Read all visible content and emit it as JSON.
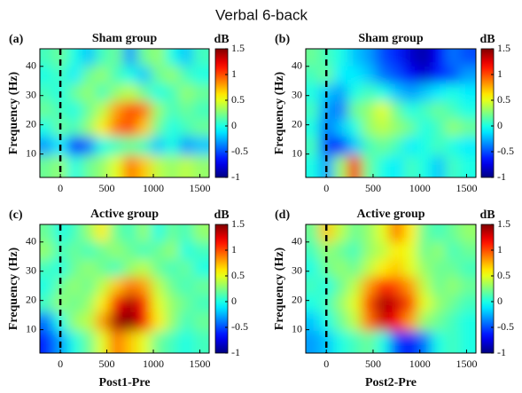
{
  "title": "Verbal 6-back",
  "chart_data": [
    {
      "type": "heatmap",
      "panel_label": "(a)",
      "title": "Sham group",
      "ylabel": "Frequency (Hz)",
      "x": [
        -150,
        0,
        150,
        300,
        450,
        600,
        750,
        900,
        1050,
        1200,
        1350,
        1500
      ],
      "y": [
        43,
        37,
        31,
        25,
        19,
        13,
        6
      ],
      "z": [
        [
          0.1,
          0.2,
          0.0,
          -0.2,
          0.1,
          0.2,
          -0.3,
          0.2,
          0.3,
          0.0,
          -0.2,
          0.1
        ],
        [
          0.0,
          0.1,
          -0.1,
          0.2,
          0.3,
          0.1,
          0.0,
          -0.2,
          0.2,
          0.3,
          0.1,
          0.0
        ],
        [
          0.1,
          0.0,
          0.2,
          0.3,
          0.1,
          0.3,
          0.4,
          0.2,
          0.0,
          0.1,
          0.3,
          0.2
        ],
        [
          0.2,
          0.1,
          0.0,
          0.2,
          0.4,
          0.8,
          1.0,
          0.9,
          0.3,
          0.1,
          0.2,
          0.1
        ],
        [
          0.0,
          0.2,
          0.1,
          0.3,
          0.6,
          0.9,
          1.0,
          0.7,
          0.2,
          0.0,
          0.1,
          0.2
        ],
        [
          -0.3,
          -0.1,
          -0.6,
          -0.4,
          0.0,
          0.1,
          0.2,
          0.1,
          -0.2,
          0.0,
          -0.3,
          -0.2
        ],
        [
          0.2,
          0.3,
          0.0,
          0.2,
          0.3,
          0.5,
          0.9,
          0.7,
          0.4,
          0.3,
          0.4,
          0.3
        ]
      ],
      "xlim": [
        -220,
        1600
      ],
      "ylim": [
        2,
        46
      ],
      "xticks": [
        0,
        500,
        1000,
        1500
      ],
      "yticks": [
        10,
        20,
        30,
        40
      ],
      "vline": 0,
      "colormap": "jet",
      "clim": [
        -1,
        1.5
      ],
      "cticks": [
        -1,
        -0.5,
        0,
        0.5,
        1,
        1.5
      ],
      "colorbar_label": "dB"
    },
    {
      "type": "heatmap",
      "panel_label": "(b)",
      "title": "Sham group",
      "ylabel": "Frequency (Hz)",
      "x": [
        -150,
        0,
        150,
        300,
        450,
        600,
        750,
        900,
        1050,
        1200,
        1350,
        1500
      ],
      "y": [
        43,
        37,
        31,
        25,
        19,
        13,
        6
      ],
      "z": [
        [
          0.2,
          0.1,
          0.0,
          -0.2,
          -0.3,
          -0.5,
          -0.6,
          -0.8,
          -0.9,
          -0.7,
          -0.4,
          -0.5
        ],
        [
          0.1,
          0.2,
          -0.1,
          -0.1,
          -0.2,
          -0.4,
          -0.5,
          -0.7,
          -0.8,
          -0.6,
          -0.5,
          -0.3
        ],
        [
          0.0,
          -0.2,
          -0.3,
          0.0,
          0.1,
          0.0,
          -0.2,
          -0.3,
          -0.2,
          -0.1,
          0.0,
          -0.1
        ],
        [
          0.1,
          -0.3,
          -0.4,
          0.2,
          0.3,
          0.5,
          0.2,
          0.0,
          0.1,
          0.2,
          0.1,
          0.0
        ],
        [
          0.0,
          -0.4,
          -0.2,
          0.0,
          0.3,
          0.4,
          0.3,
          0.2,
          0.0,
          0.1,
          0.3,
          0.2
        ],
        [
          0.1,
          -0.5,
          -0.6,
          -0.2,
          0.1,
          0.2,
          0.1,
          -0.1,
          0.0,
          0.1,
          0.0,
          -0.1
        ],
        [
          0.0,
          -0.3,
          0.3,
          1.2,
          0.2,
          0.0,
          -0.1,
          0.1,
          0.0,
          -0.2,
          0.1,
          0.0
        ]
      ],
      "xlim": [
        -220,
        1600
      ],
      "ylim": [
        2,
        46
      ],
      "xticks": [
        0,
        500,
        1000,
        1500
      ],
      "yticks": [
        10,
        20,
        30,
        40
      ],
      "vline": 0,
      "colormap": "jet",
      "clim": [
        -1,
        1.5
      ],
      "cticks": [
        -1,
        -0.5,
        0,
        0.5,
        1,
        1.5
      ],
      "colorbar_label": "dB"
    },
    {
      "type": "heatmap",
      "panel_label": "(c)",
      "title": "Active group",
      "ylabel": "Frequency (Hz)",
      "xlabel": "Post1-Pre",
      "x": [
        -150,
        0,
        150,
        300,
        450,
        600,
        750,
        900,
        1050,
        1200,
        1350,
        1500
      ],
      "y": [
        43,
        37,
        31,
        25,
        19,
        13,
        6
      ],
      "z": [
        [
          0.2,
          0.0,
          0.1,
          0.3,
          0.6,
          0.2,
          0.1,
          0.3,
          0.0,
          0.2,
          0.1,
          0.3
        ],
        [
          0.3,
          0.1,
          0.2,
          0.1,
          0.2,
          0.3,
          0.2,
          0.1,
          0.2,
          0.3,
          0.0,
          0.1
        ],
        [
          0.1,
          0.0,
          0.2,
          0.3,
          0.2,
          0.1,
          0.3,
          0.4,
          0.2,
          0.1,
          0.2,
          0.0
        ],
        [
          0.0,
          0.2,
          0.3,
          0.2,
          0.4,
          0.7,
          0.9,
          0.8,
          0.4,
          0.2,
          0.1,
          0.2
        ],
        [
          0.1,
          0.3,
          0.2,
          0.3,
          0.6,
          1.2,
          1.4,
          1.1,
          0.5,
          0.3,
          0.2,
          0.1
        ],
        [
          -0.4,
          0.0,
          0.3,
          0.4,
          0.8,
          1.4,
          1.5,
          1.2,
          0.6,
          0.3,
          0.1,
          0.2
        ],
        [
          -0.6,
          -0.3,
          0.0,
          0.2,
          0.5,
          0.9,
          0.7,
          0.5,
          0.2,
          0.1,
          0.0,
          0.1
        ]
      ],
      "xlim": [
        -220,
        1600
      ],
      "ylim": [
        2,
        46
      ],
      "xticks": [
        0,
        500,
        1000,
        1500
      ],
      "yticks": [
        10,
        20,
        30,
        40
      ],
      "vline": 0,
      "colormap": "jet",
      "clim": [
        -1,
        1.5
      ],
      "cticks": [
        -1,
        -0.5,
        0,
        0.5,
        1,
        1.5
      ],
      "colorbar_label": "dB"
    },
    {
      "type": "heatmap",
      "panel_label": "(d)",
      "title": "Active group",
      "ylabel": "Frequency (Hz)",
      "xlabel": "Post2-Pre",
      "x": [
        -150,
        0,
        150,
        300,
        450,
        600,
        750,
        900,
        1050,
        1200,
        1350,
        1500
      ],
      "y": [
        43,
        37,
        31,
        25,
        19,
        13,
        6
      ],
      "z": [
        [
          0.2,
          0.7,
          0.4,
          0.2,
          0.3,
          0.5,
          0.9,
          0.6,
          0.2,
          0.1,
          0.2,
          0.3
        ],
        [
          0.1,
          0.3,
          0.2,
          0.1,
          0.3,
          0.4,
          0.6,
          0.5,
          0.2,
          0.3,
          0.1,
          0.2
        ],
        [
          0.0,
          0.2,
          0.3,
          0.2,
          0.4,
          0.6,
          0.7,
          0.5,
          0.3,
          0.2,
          0.2,
          0.1
        ],
        [
          0.1,
          0.0,
          0.2,
          0.4,
          0.8,
          1.1,
          1.0,
          0.8,
          0.4,
          0.2,
          0.3,
          0.2
        ],
        [
          0.0,
          0.1,
          0.3,
          0.5,
          1.0,
          1.4,
          1.3,
          1.0,
          0.5,
          0.3,
          0.2,
          0.1
        ],
        [
          -0.2,
          0.0,
          0.2,
          0.4,
          0.9,
          1.3,
          1.2,
          0.8,
          0.3,
          0.2,
          0.1,
          0.0
        ],
        [
          -0.3,
          -0.2,
          0.0,
          0.1,
          0.2,
          0.0,
          -0.5,
          -0.7,
          -0.4,
          0.0,
          0.1,
          0.0
        ]
      ],
      "xlim": [
        -220,
        1600
      ],
      "ylim": [
        2,
        46
      ],
      "xticks": [
        0,
        500,
        1000,
        1500
      ],
      "yticks": [
        10,
        20,
        30,
        40
      ],
      "vline": 0,
      "colormap": "jet",
      "clim": [
        -1,
        1.5
      ],
      "cticks": [
        -1,
        -0.5,
        0,
        0.5,
        1,
        1.5
      ],
      "colorbar_label": "dB"
    }
  ]
}
